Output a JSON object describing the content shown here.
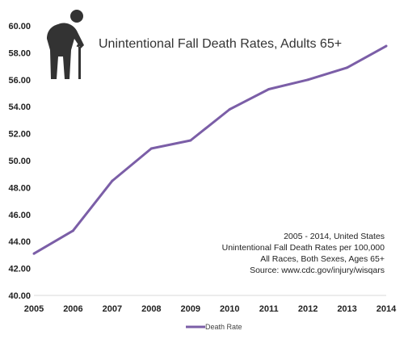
{
  "chart_data": {
    "type": "line",
    "title": "Unintentional Fall Death Rates, Adults 65+",
    "xlabel": "",
    "ylabel": "",
    "x": [
      "2005",
      "2006",
      "2007",
      "2008",
      "2009",
      "2010",
      "2011",
      "2012",
      "2013",
      "2014"
    ],
    "y_ticks": [
      "40.00",
      "42.00",
      "44.00",
      "46.00",
      "48.00",
      "50.00",
      "52.00",
      "54.00",
      "56.00",
      "58.00",
      "60.00"
    ],
    "ylim": [
      40,
      60
    ],
    "grid": false,
    "legend_position": "bottom-left",
    "series": [
      {
        "name": "Death Rate",
        "color": "#7b5ea7",
        "values": [
          43.1,
          44.8,
          48.5,
          50.9,
          51.5,
          53.8,
          55.3,
          56.0,
          56.9,
          58.5
        ]
      }
    ],
    "annotations": [
      "2005 - 2014, United States",
      "Unintentional Fall Death Rates per 100,000",
      "All Races, Both Sexes, Ages 65+",
      "Source: www.cdc.gov/injury/wisqars"
    ],
    "icon": "elderly-person-with-cane-icon"
  }
}
